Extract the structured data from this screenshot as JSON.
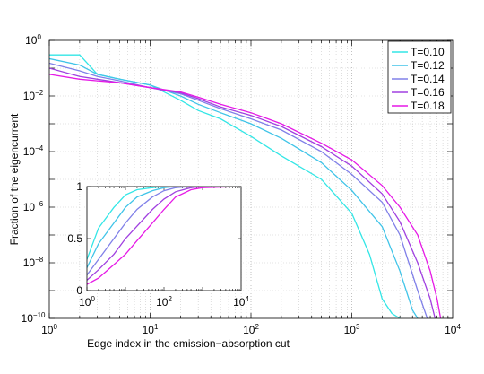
{
  "chart_data": [
    {
      "id": "main",
      "type": "line",
      "xscale": "log",
      "yscale": "log",
      "xlim": [
        1,
        10000
      ],
      "ylim": [
        1e-10,
        1
      ],
      "grid": true,
      "xlabel": "Edge index in the emission−absorption cut",
      "ylabel": "Fraction of the eigencurrent",
      "legend_position": "top-right",
      "x_ticks": [
        {
          "value": 1,
          "base": "10",
          "exp": "0"
        },
        {
          "value": 10,
          "base": "10",
          "exp": "1"
        },
        {
          "value": 100,
          "base": "10",
          "exp": "2"
        },
        {
          "value": 1000,
          "base": "10",
          "exp": "3"
        },
        {
          "value": 10000,
          "base": "10",
          "exp": "4"
        }
      ],
      "y_ticks": [
        {
          "value": 1,
          "base": "10",
          "exp": "0"
        },
        {
          "value": 0.01,
          "base": "10",
          "exp": "−2"
        },
        {
          "value": 0.0001,
          "base": "10",
          "exp": "−4"
        },
        {
          "value": 1e-06,
          "base": "10",
          "exp": "−6"
        },
        {
          "value": 1e-08,
          "base": "10",
          "exp": "−8"
        },
        {
          "value": 1e-10,
          "base": "10",
          "exp": "−10"
        }
      ],
      "series": [
        {
          "name": "T=0.10",
          "color": "#33e6e6",
          "x": [
            1,
            2,
            3,
            5,
            10,
            20,
            30,
            50,
            100,
            200,
            500,
            1000,
            1500,
            2000,
            2500,
            3000
          ],
          "y": [
            0.3,
            0.3,
            0.06,
            0.04,
            0.025,
            0.007,
            0.003,
            0.0015,
            0.00035,
            7e-05,
            1e-05,
            6e-07,
            2e-08,
            5e-10,
            1.5e-10,
            1e-10
          ]
        },
        {
          "name": "T=0.12",
          "color": "#40c4e8",
          "x": [
            1,
            2,
            3,
            5,
            10,
            20,
            30,
            50,
            100,
            200,
            500,
            1000,
            2000,
            3000,
            4000,
            4500
          ],
          "y": [
            0.22,
            0.13,
            0.06,
            0.04,
            0.025,
            0.01,
            0.005,
            0.0025,
            0.001,
            0.0003,
            4e-05,
            4e-06,
            2e-07,
            5e-09,
            2e-10,
            1e-10
          ]
        },
        {
          "name": "T=0.14",
          "color": "#8080e8",
          "x": [
            1,
            2,
            3,
            5,
            10,
            20,
            30,
            50,
            100,
            200,
            500,
            1000,
            2000,
            3000,
            4500,
            5600
          ],
          "y": [
            0.15,
            0.08,
            0.05,
            0.035,
            0.02,
            0.012,
            0.007,
            0.0035,
            0.0015,
            0.0006,
            0.0001,
            1.5e-05,
            1.5e-06,
            1e-07,
            1e-09,
            1e-10
          ]
        },
        {
          "name": "T=0.16",
          "color": "#a040e0",
          "x": [
            1,
            2,
            3,
            5,
            10,
            20,
            30,
            50,
            100,
            200,
            500,
            1000,
            2000,
            3000,
            4500,
            6000,
            6700
          ],
          "y": [
            0.1,
            0.05,
            0.04,
            0.03,
            0.02,
            0.013,
            0.008,
            0.004,
            0.002,
            0.0008,
            0.00015,
            3e-05,
            3e-06,
            3e-07,
            1e-08,
            5e-10,
            1e-10
          ]
        },
        {
          "name": "T=0.18",
          "color": "#e619e6",
          "x": [
            1,
            2,
            3,
            5,
            10,
            20,
            30,
            50,
            100,
            200,
            500,
            1000,
            2000,
            3000,
            4500,
            6000,
            7000,
            7600
          ],
          "y": [
            0.06,
            0.04,
            0.035,
            0.03,
            0.02,
            0.014,
            0.009,
            0.005,
            0.0025,
            0.001,
            0.0002,
            5e-05,
            6e-06,
            1e-06,
            1e-07,
            5e-09,
            5e-10,
            1e-10
          ]
        }
      ]
    },
    {
      "id": "inset",
      "type": "line",
      "xscale": "log",
      "yscale": "linear",
      "xlim": [
        1,
        10000
      ],
      "ylim": [
        0,
        1
      ],
      "grid": false,
      "x_ticks": [
        {
          "value": 1,
          "base": "10",
          "exp": "0"
        },
        {
          "value": 100,
          "base": "10",
          "exp": "2"
        },
        {
          "value": 10000,
          "base": "10",
          "exp": "4"
        }
      ],
      "y_ticks": [
        {
          "value": 0,
          "label": "0"
        },
        {
          "value": 0.5,
          "label": "0.5"
        },
        {
          "value": 1,
          "label": "1"
        }
      ],
      "series": [
        {
          "name": "T=0.10",
          "color": "#33e6e6",
          "x": [
            1,
            2,
            5,
            10,
            20,
            50,
            100,
            200,
            500,
            1000,
            10000
          ],
          "y": [
            0.3,
            0.6,
            0.8,
            0.92,
            0.97,
            0.99,
            1,
            1,
            1,
            1,
            1
          ]
        },
        {
          "name": "T=0.12",
          "color": "#40c4e8",
          "x": [
            1,
            2,
            5,
            10,
            20,
            50,
            100,
            200,
            500,
            1000,
            10000
          ],
          "y": [
            0.22,
            0.45,
            0.65,
            0.8,
            0.9,
            0.96,
            0.99,
            1,
            1,
            1,
            1
          ]
        },
        {
          "name": "T=0.14",
          "color": "#8080e8",
          "x": [
            1,
            2,
            5,
            10,
            20,
            50,
            100,
            200,
            500,
            1000,
            10000
          ],
          "y": [
            0.15,
            0.3,
            0.5,
            0.65,
            0.78,
            0.9,
            0.96,
            0.99,
            1,
            1,
            1
          ]
        },
        {
          "name": "T=0.16",
          "color": "#a040e0",
          "x": [
            1,
            2,
            5,
            10,
            20,
            50,
            100,
            200,
            500,
            1000,
            10000
          ],
          "y": [
            0.1,
            0.2,
            0.35,
            0.5,
            0.62,
            0.78,
            0.88,
            0.95,
            0.99,
            1,
            1
          ]
        },
        {
          "name": "T=0.18",
          "color": "#e619e6",
          "x": [
            1,
            2,
            5,
            10,
            20,
            50,
            100,
            200,
            500,
            1000,
            10000
          ],
          "y": [
            0.06,
            0.12,
            0.25,
            0.35,
            0.48,
            0.65,
            0.78,
            0.9,
            0.97,
            0.99,
            1
          ]
        }
      ]
    }
  ]
}
